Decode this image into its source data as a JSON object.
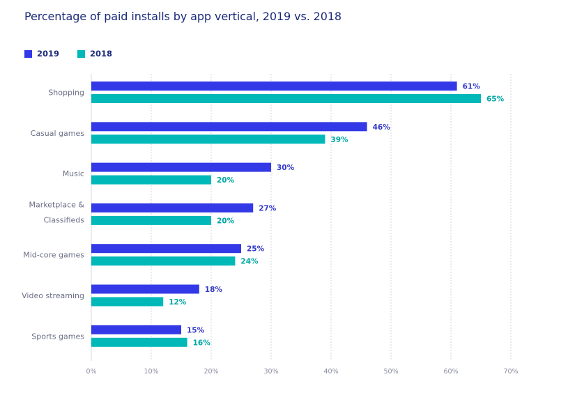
{
  "chart_data": {
    "type": "bar",
    "orientation": "horizontal",
    "title": "Percentage of paid installs by app vertical, 2019 vs. 2018",
    "xlabel": "",
    "ylabel": "",
    "xlim": [
      0,
      70
    ],
    "grid": true,
    "legend_position": "top-left",
    "categories": [
      [
        "Shopping"
      ],
      [
        "Casual games"
      ],
      [
        "Music"
      ],
      [
        "Marketplace &",
        "Classifieds"
      ],
      [
        "Mid-core games"
      ],
      [
        "Video streaming"
      ],
      [
        "Sports games"
      ]
    ],
    "series": [
      {
        "name": "2019",
        "color": "#3339e6",
        "label_color": "#3339c8",
        "values": [
          61,
          46,
          30,
          27,
          25,
          18,
          15
        ]
      },
      {
        "name": "2018",
        "color": "#00b8b8",
        "label_color": "#00a8a4",
        "values": [
          65,
          39,
          20,
          20,
          24,
          12,
          16
        ]
      }
    ],
    "x_ticks": [
      0,
      10,
      20,
      30,
      40,
      50,
      60,
      70
    ],
    "x_tick_labels": [
      "0%",
      "10%",
      "20%",
      "30%",
      "40%",
      "50%",
      "60%",
      "70%"
    ],
    "value_suffix": "%"
  }
}
